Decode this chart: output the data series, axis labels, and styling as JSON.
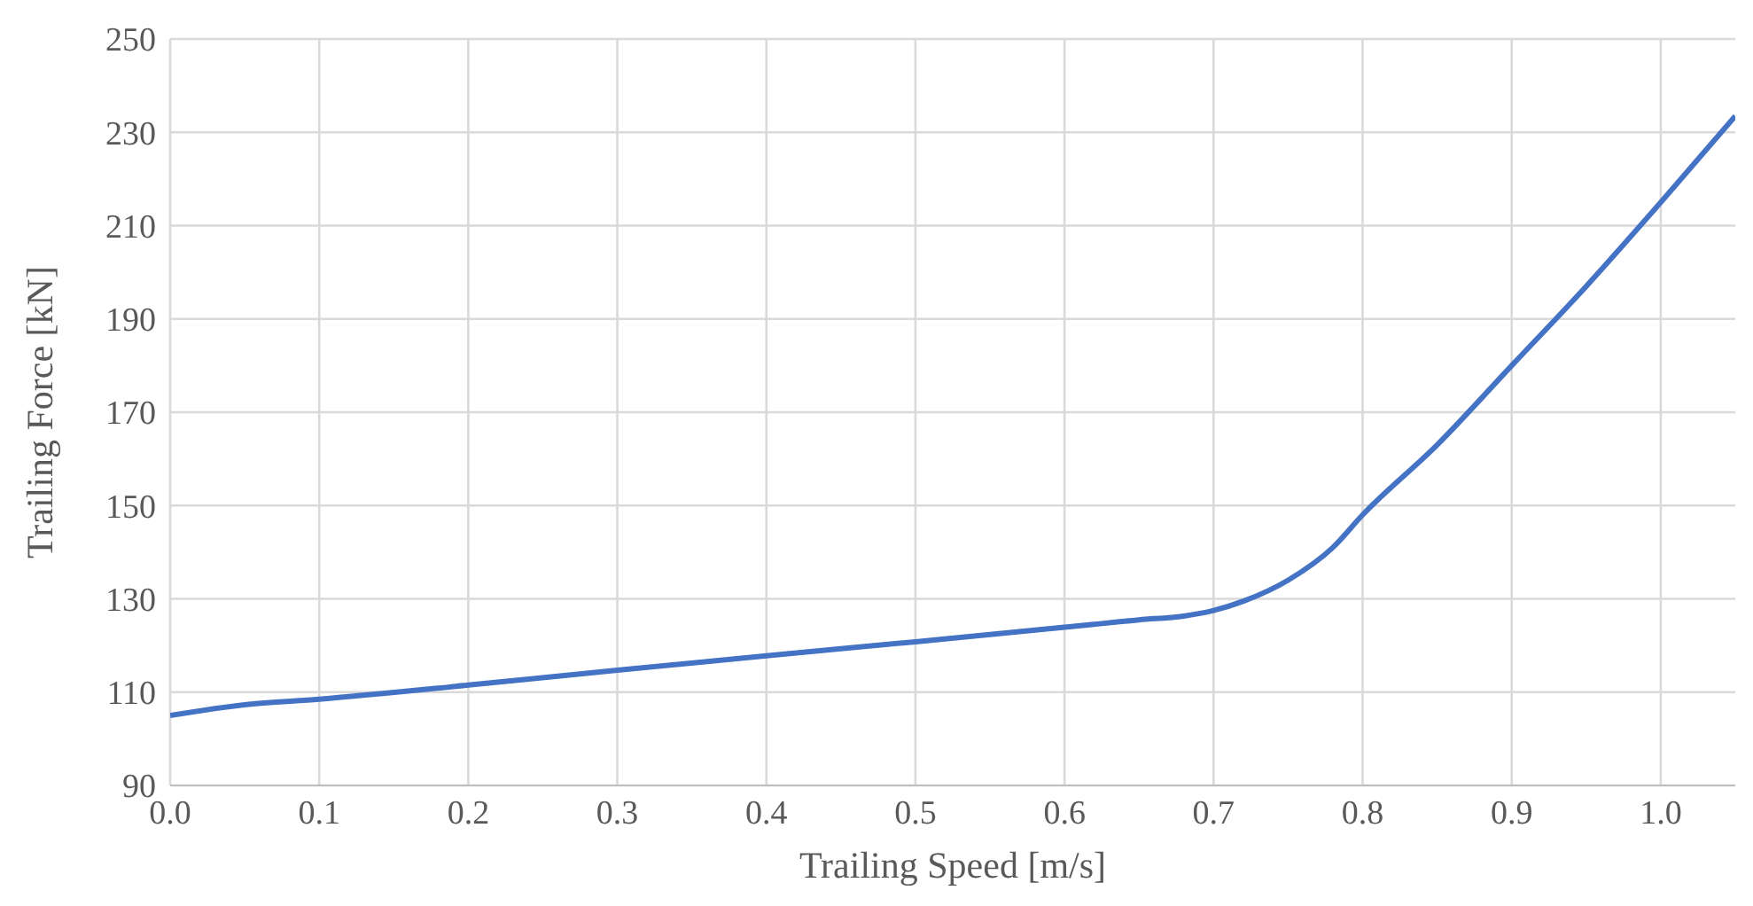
{
  "chart_data": {
    "type": "line",
    "xlabel": "Trailing Speed [m/s]",
    "ylabel": "Trailing Force [kN]",
    "x": [
      0,
      0.05,
      0.1,
      0.2,
      0.3,
      0.4,
      0.5,
      0.6,
      0.65,
      0.68,
      0.7,
      0.72,
      0.75,
      0.78,
      0.8,
      0.85,
      0.9,
      0.95,
      1.0,
      1.05
    ],
    "series": [
      {
        "color": "#4472c4",
        "values": [
          105,
          107.3,
          108.5,
          111.5,
          114.7,
          117.8,
          120.8,
          123.9,
          125.5,
          126.3,
          127.5,
          129.5,
          134,
          141,
          148,
          163,
          180,
          197,
          215,
          233.5
        ]
      }
    ],
    "xlim": [
      0,
      1.05
    ],
    "xticks": [
      {
        "value": 0,
        "label": "0.0"
      },
      0.1,
      0.2,
      0.3,
      0.4,
      0.5,
      0.6,
      0.7,
      0.8,
      0.9,
      {
        "value": 1,
        "label": "1.0"
      }
    ],
    "ylim": [
      90,
      250
    ],
    "yticks": [
      90,
      110,
      130,
      150,
      170,
      190,
      210,
      230,
      250
    ],
    "grid": true
  }
}
